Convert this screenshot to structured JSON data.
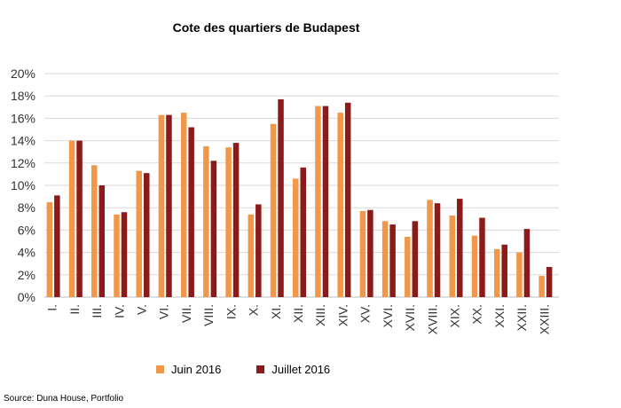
{
  "source_note": "Source: Duna House, Portfolio",
  "chart_data": {
    "type": "bar",
    "title": "Cote des quartiers de Budapest",
    "xlabel": "",
    "ylabel": "",
    "ylim": [
      0,
      20
    ],
    "y_ticks": [
      "0%",
      "2%",
      "4%",
      "6%",
      "8%",
      "10%",
      "12%",
      "14%",
      "16%",
      "18%",
      "20%"
    ],
    "grid": true,
    "legend_position": "bottom",
    "categories": [
      "I.",
      "II.",
      "III.",
      "IV.",
      "V.",
      "VI.",
      "VII.",
      "VIII.",
      "IX.",
      "X.",
      "XI.",
      "XII.",
      "XIII.",
      "XIV.",
      "XV.",
      "XVI.",
      "XVII.",
      "XVIII.",
      "XIX.",
      "XX.",
      "XXI.",
      "XXII.",
      "XXIII."
    ],
    "series": [
      {
        "name": "Juin 2016",
        "color": "#F0974A",
        "values": [
          8.5,
          14.0,
          11.8,
          7.4,
          11.3,
          16.3,
          16.5,
          13.5,
          13.4,
          7.4,
          15.5,
          10.6,
          17.1,
          16.5,
          7.7,
          6.8,
          5.4,
          8.7,
          7.3,
          5.5,
          4.3,
          4.0,
          1.9
        ]
      },
      {
        "name": "Juillet 2016",
        "color": "#8B1A1A",
        "values": [
          9.1,
          14.0,
          10.0,
          7.6,
          11.1,
          16.3,
          15.2,
          12.2,
          13.8,
          8.3,
          17.7,
          11.6,
          17.1,
          17.4,
          7.8,
          6.5,
          6.8,
          8.4,
          8.8,
          7.1,
          4.7,
          6.1,
          2.7
        ]
      }
    ]
  }
}
